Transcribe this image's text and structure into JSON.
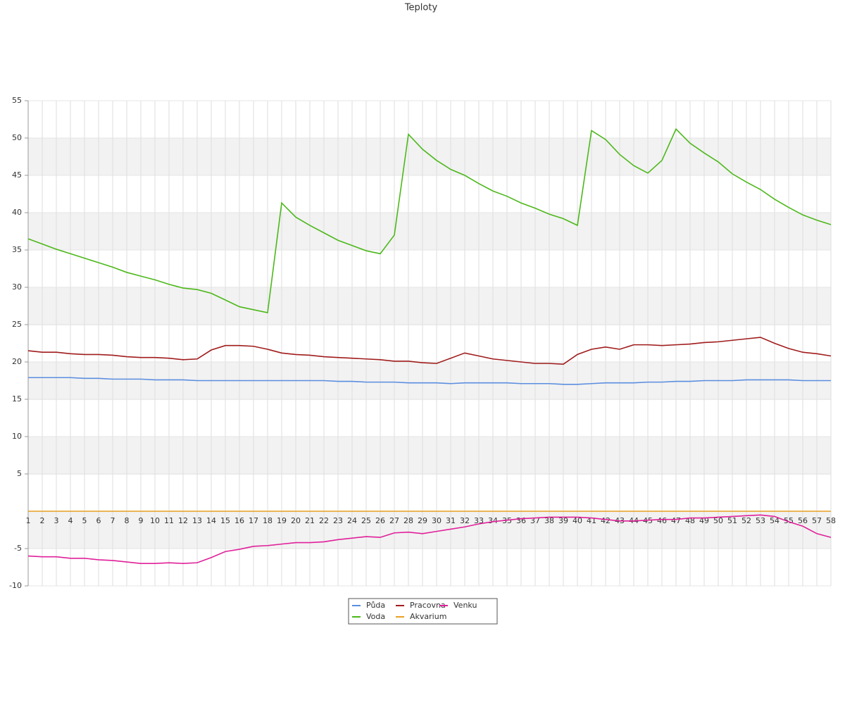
{
  "chart_data": {
    "type": "line",
    "title": "Teploty",
    "categories": [
      "1",
      "2",
      "3",
      "4",
      "5",
      "6",
      "7",
      "8",
      "9",
      "10",
      "11",
      "12",
      "13",
      "14",
      "15",
      "16",
      "17",
      "18",
      "19",
      "20",
      "21",
      "22",
      "23",
      "24",
      "25",
      "26",
      "27",
      "28",
      "29",
      "30",
      "31",
      "32",
      "33",
      "34",
      "35",
      "36",
      "37",
      "38",
      "39",
      "40",
      "41",
      "42",
      "43",
      "44",
      "45",
      "46",
      "47",
      "48",
      "49",
      "50",
      "51",
      "52",
      "53",
      "54",
      "55",
      "56",
      "57",
      "58"
    ],
    "series": [
      {
        "name": "Půda",
        "color": "#5b8ee0",
        "values": [
          17.9,
          17.9,
          17.9,
          17.9,
          17.8,
          17.8,
          17.7,
          17.7,
          17.7,
          17.6,
          17.6,
          17.6,
          17.5,
          17.5,
          17.5,
          17.5,
          17.5,
          17.5,
          17.5,
          17.5,
          17.5,
          17.5,
          17.4,
          17.4,
          17.3,
          17.3,
          17.3,
          17.2,
          17.2,
          17.2,
          17.1,
          17.2,
          17.2,
          17.2,
          17.2,
          17.1,
          17.1,
          17.1,
          17.0,
          17.0,
          17.1,
          17.2,
          17.2,
          17.2,
          17.3,
          17.3,
          17.4,
          17.4,
          17.5,
          17.5,
          17.5,
          17.6,
          17.6,
          17.6,
          17.6,
          17.5,
          17.5,
          17.5
        ]
      },
      {
        "name": "Voda",
        "color": "#4cb81a",
        "values": [
          36.5,
          35.8,
          35.1,
          34.5,
          33.9,
          33.3,
          32.7,
          32.0,
          31.5,
          31.0,
          30.4,
          29.9,
          29.7,
          29.2,
          28.3,
          27.4,
          27.0,
          26.6,
          41.3,
          39.4,
          38.3,
          37.3,
          36.3,
          35.6,
          34.9,
          34.5,
          37.0,
          50.5,
          48.5,
          47.0,
          45.8,
          45.0,
          43.9,
          42.9,
          42.2,
          41.3,
          40.6,
          39.8,
          39.2,
          38.3,
          51.0,
          49.8,
          47.8,
          46.3,
          45.3,
          47.0,
          51.2,
          49.3,
          48.0,
          46.8,
          45.2,
          44.1,
          43.1,
          41.8,
          40.7,
          39.7,
          39.0,
          38.4
        ]
      },
      {
        "name": "Pracovna",
        "color": "#a01c1c",
        "values": [
          21.5,
          21.3,
          21.3,
          21.1,
          21.0,
          21.0,
          20.9,
          20.7,
          20.6,
          20.6,
          20.5,
          20.3,
          20.4,
          21.6,
          22.2,
          22.2,
          22.1,
          21.7,
          21.2,
          21.0,
          20.9,
          20.7,
          20.6,
          20.5,
          20.4,
          20.3,
          20.1,
          20.1,
          19.9,
          19.8,
          20.5,
          21.2,
          20.8,
          20.4,
          20.2,
          20.0,
          19.8,
          19.8,
          19.7,
          21.0,
          21.7,
          22.0,
          21.7,
          22.3,
          22.3,
          22.2,
          22.3,
          22.4,
          22.6,
          22.7,
          22.9,
          23.1,
          23.3,
          22.5,
          21.8,
          21.3,
          21.1,
          20.8
        ]
      },
      {
        "name": "Akvarium",
        "color": "#e8a020",
        "values": [
          0,
          0,
          0,
          0,
          0,
          0,
          0,
          0,
          0,
          0,
          0,
          0,
          0,
          0,
          0,
          0,
          0,
          0,
          0,
          0,
          0,
          0,
          0,
          0,
          0,
          0,
          0,
          0,
          0,
          0,
          0,
          0,
          0,
          0,
          0,
          0,
          0,
          0,
          0,
          0,
          0,
          0,
          0,
          0,
          0,
          0,
          0,
          0,
          0,
          0,
          0,
          0,
          0,
          0,
          0,
          0,
          0,
          0
        ]
      },
      {
        "name": "Venku",
        "color": "#e0209a",
        "values": [
          -6.0,
          -6.1,
          -6.1,
          -6.3,
          -6.3,
          -6.5,
          -6.6,
          -6.8,
          -7.0,
          -7.0,
          -6.9,
          -7.0,
          -6.9,
          -6.2,
          -5.4,
          -5.1,
          -4.7,
          -4.6,
          -4.4,
          -4.2,
          -4.2,
          -4.1,
          -3.8,
          -3.6,
          -3.4,
          -3.5,
          -2.9,
          -2.8,
          -3.0,
          -2.7,
          -2.4,
          -2.1,
          -1.7,
          -1.4,
          -1.2,
          -1.0,
          -0.9,
          -0.8,
          -0.8,
          -0.8,
          -0.9,
          -1.1,
          -1.3,
          -1.3,
          -1.2,
          -1.1,
          -1.1,
          -0.9,
          -0.9,
          -0.8,
          -0.7,
          -0.6,
          -0.5,
          -0.7,
          -1.4,
          -2.0,
          -3.0,
          -3.5
        ]
      }
    ],
    "ylim": [
      -10,
      55
    ],
    "yticks": [
      55,
      50,
      45,
      40,
      35,
      30,
      25,
      20,
      15,
      10,
      5,
      -5,
      -10
    ],
    "grid": true
  }
}
